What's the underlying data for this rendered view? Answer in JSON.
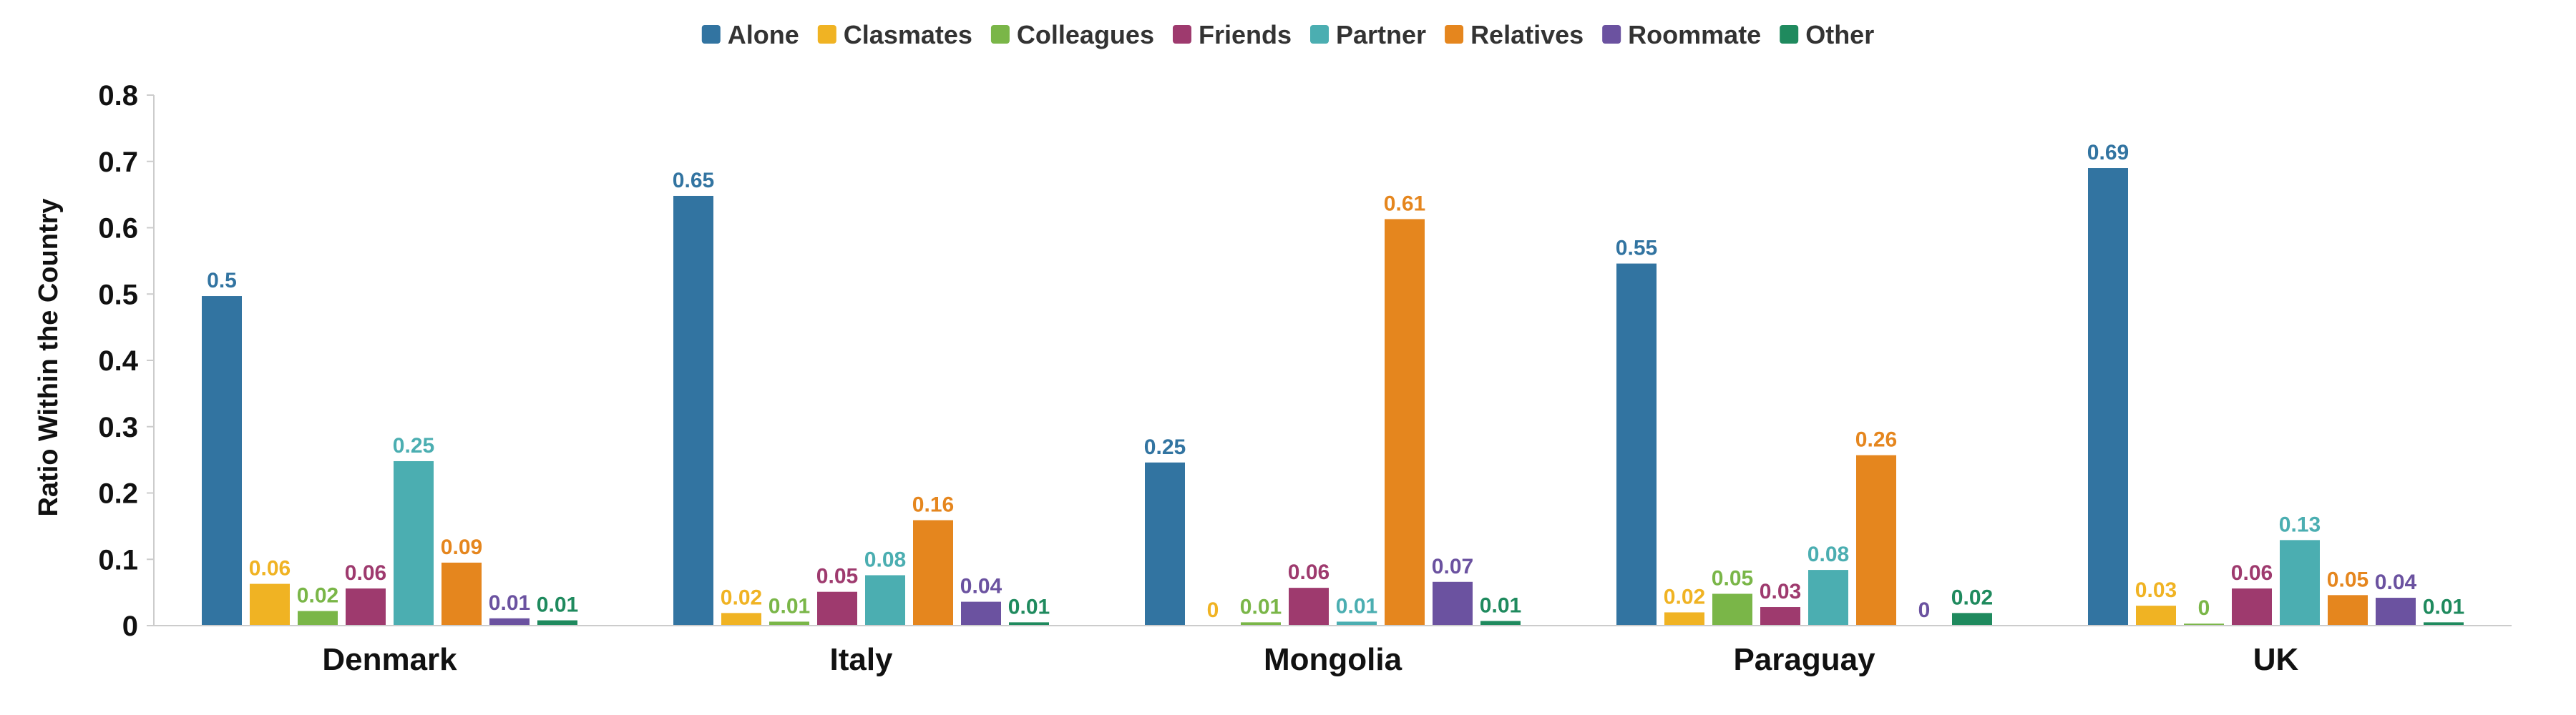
{
  "chart_data": {
    "type": "bar",
    "title": "",
    "xlabel": "",
    "ylabel": "Ratio Within the Country",
    "ylim": [
      0,
      0.8
    ],
    "yticks": [
      "0",
      "0.1",
      "0.2",
      "0.3",
      "0.4",
      "0.5",
      "0.6",
      "0.7",
      "0.8"
    ],
    "grid": false,
    "legend_position": "top-center",
    "categories": [
      "Denmark",
      "Italy",
      "Mongolia",
      "Paraguay",
      "UK"
    ],
    "series": [
      {
        "name": "Alone",
        "color": "#3274a1",
        "values": [
          0.497,
          0.648,
          0.246,
          0.546,
          0.69
        ],
        "labels": [
          "0.5",
          "0.65",
          "0.25",
          "0.55",
          "0.69"
        ]
      },
      {
        "name": "Clasmates",
        "color": "#f0b323",
        "values": [
          0.063,
          0.019,
          0.0,
          0.02,
          0.03
        ],
        "labels": [
          "0.06",
          "0.02",
          "0",
          "0.02",
          "0.03"
        ]
      },
      {
        "name": "Colleagues",
        "color": "#7ab648",
        "values": [
          0.022,
          0.006,
          0.005,
          0.048,
          0.003
        ],
        "labels": [
          "0.02",
          "0.01",
          "0.01",
          "0.05",
          "0"
        ]
      },
      {
        "name": "Friends",
        "color": "#9e3a6e",
        "values": [
          0.056,
          0.051,
          0.057,
          0.028,
          0.056
        ],
        "labels": [
          "0.06",
          "0.05",
          "0.06",
          "0.03",
          "0.06"
        ]
      },
      {
        "name": "Partner",
        "color": "#4baeb1",
        "values": [
          0.248,
          0.076,
          0.006,
          0.084,
          0.129
        ],
        "labels": [
          "0.25",
          "0.08",
          "0.01",
          "0.08",
          "0.13"
        ]
      },
      {
        "name": "Relatives",
        "color": "#e5861e",
        "values": [
          0.095,
          0.159,
          0.613,
          0.257,
          0.046
        ],
        "labels": [
          "0.09",
          "0.16",
          "0.61",
          "0.26",
          "0.05"
        ]
      },
      {
        "name": "Roommate",
        "color": "#6b52a0",
        "values": [
          0.011,
          0.036,
          0.066,
          0.0,
          0.042
        ],
        "labels": [
          "0.01",
          "0.04",
          "0.07",
          "0",
          "0.04"
        ]
      },
      {
        "name": "Other",
        "color": "#1f8a5e",
        "values": [
          0.008,
          0.005,
          0.007,
          0.019,
          0.005
        ],
        "labels": [
          "0.01",
          "0.01",
          "0.01",
          "0.02",
          "0.01"
        ]
      }
    ]
  }
}
